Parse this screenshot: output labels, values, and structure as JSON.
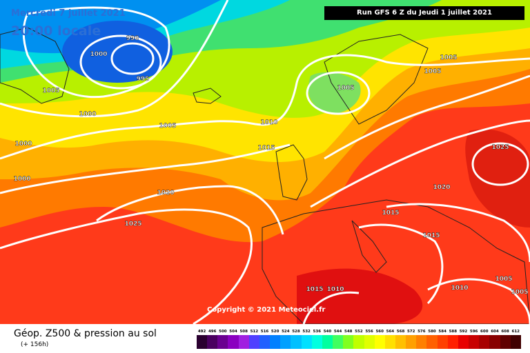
{
  "header": {
    "date": "Mercredi 7 juillet 2021",
    "time": "20:00 locale",
    "run": "Run GFS 6 Z du Jeudi 1 juillet 2021"
  },
  "copyright": "Copyright © 2021 Meteociel.fr",
  "footer": {
    "title": "Géop. Z500 & pression au sol",
    "subtitle": "(+ 156h)"
  },
  "scale": {
    "labels": [
      "492",
      "496",
      "500",
      "504",
      "508",
      "512",
      "516",
      "520",
      "524",
      "528",
      "532",
      "536",
      "540",
      "544",
      "548",
      "552",
      "556",
      "560",
      "564",
      "568",
      "572",
      "576",
      "580",
      "584",
      "588",
      "592",
      "596",
      "600",
      "604",
      "608",
      "612"
    ],
    "colors": [
      "#2a0030",
      "#4a0060",
      "#6a0090",
      "#8a00c0",
      "#a020e0",
      "#5040ff",
      "#2060ff",
      "#0080ff",
      "#00a0ff",
      "#00c0ff",
      "#00e0ff",
      "#00ffe0",
      "#00ffa0",
      "#40ff60",
      "#80ff20",
      "#c0ff00",
      "#e0ff00",
      "#ffff00",
      "#ffe000",
      "#ffc000",
      "#ffa000",
      "#ff8000",
      "#ff6000",
      "#ff4000",
      "#ff2000",
      "#e80000",
      "#c80000",
      "#a80000",
      "#880000",
      "#600000",
      "#400000"
    ]
  },
  "isobars": [
    {
      "label": "990"
    },
    {
      "label": "995"
    },
    {
      "label": "1000"
    },
    {
      "label": "1005"
    },
    {
      "label": "1000"
    },
    {
      "label": "1000"
    },
    {
      "label": "1000"
    },
    {
      "label": "1005"
    },
    {
      "label": "1005"
    },
    {
      "label": "1010"
    },
    {
      "label": "1015"
    },
    {
      "label": "1020"
    },
    {
      "label": "1025"
    },
    {
      "label": "1005"
    },
    {
      "label": "1005"
    },
    {
      "label": "1025"
    },
    {
      "label": "1020"
    },
    {
      "label": "1015"
    },
    {
      "label": "1015"
    },
    {
      "label": "1015"
    },
    {
      "label": "1010"
    },
    {
      "label": "1010"
    },
    {
      "label": "1005"
    },
    {
      "label": "1005"
    }
  ]
}
